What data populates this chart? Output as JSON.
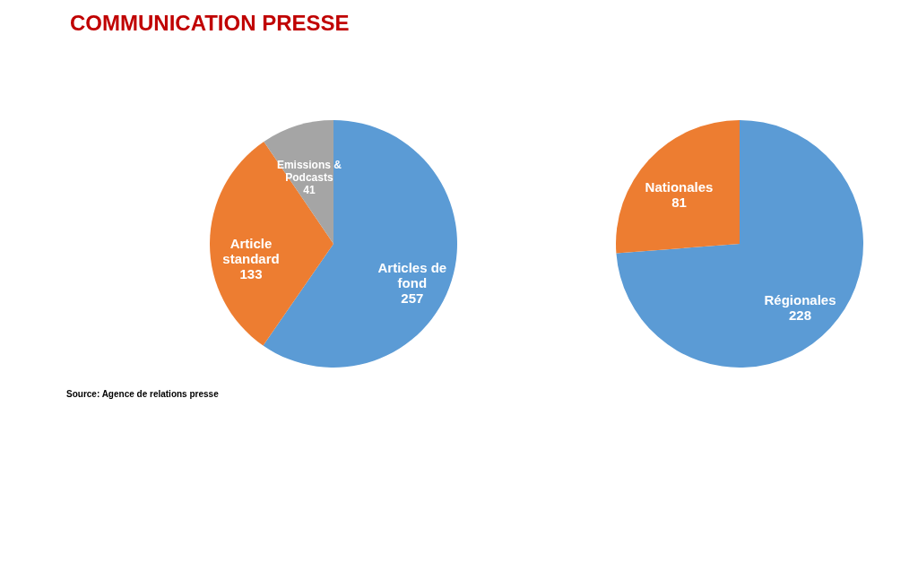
{
  "chart_data": [
    {
      "type": "pie",
      "title": "COMMUNICATION PRESSE",
      "categories": [
        "Articles de fond",
        "Article standard",
        "Emissions & Podcasts"
      ],
      "values": [
        257,
        133,
        41
      ],
      "colors": [
        "#5b9bd5",
        "#ed7d31",
        "#a5a5a5"
      ],
      "data_labels": true,
      "annotations": [
        "Source: Agence de relations presse"
      ]
    },
    {
      "type": "pie",
      "categories": [
        "Régionales",
        "Nationales"
      ],
      "values": [
        228,
        81
      ],
      "colors": [
        "#5b9bd5",
        "#ed7d31"
      ],
      "data_labels": true
    }
  ]
}
